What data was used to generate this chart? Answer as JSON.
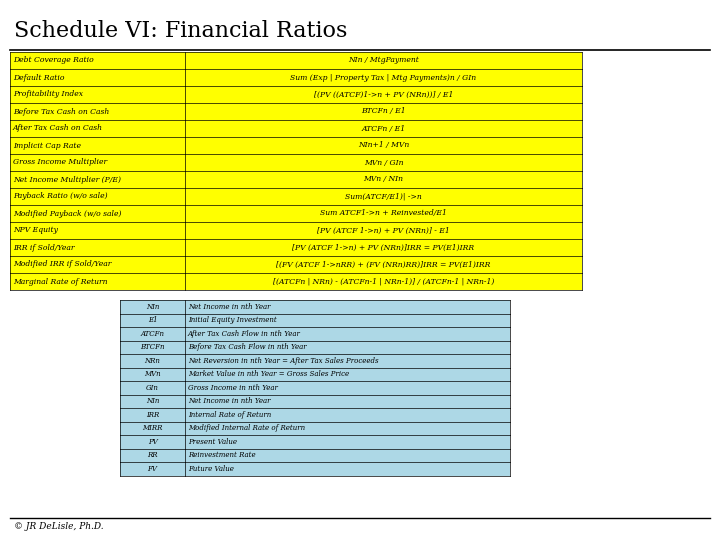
{
  "title": "Schedule VI: Financial Ratios",
  "title_fontsize": 16,
  "bg_color": "#ffffff",
  "main_table": {
    "bg": "#ffff00",
    "border_color": "#000000",
    "rows": [
      [
        "Debt Coverage Ratio",
        "NIn / MtgPayment"
      ],
      [
        "Default Ratio",
        "Sum (Exp | Property Tax | Mtg Payments)n / GIn"
      ],
      [
        "Profitability Index",
        "[(PV ((ATCF)1->n + PV (NRn))] / E1"
      ],
      [
        "Before Tax Cash on Cash",
        "BTCFn / E1"
      ],
      [
        "After Tax Cash on Cash",
        "ATCFn / E1"
      ],
      [
        "Implicit Cap Rate",
        "NIn+1 / MVn"
      ],
      [
        "Gross Income Multiplier",
        "MVn / GIn"
      ],
      [
        "Net Income Multiplier (P/E)",
        "MVn / NIn"
      ],
      [
        "Payback Ratio (w/o sale)",
        "Sum(ATCF/E1)| ->n"
      ],
      [
        "Modified Payback (w/o sale)",
        "Sum ATCF1->n + Reinvested/E1"
      ],
      [
        "NPV Equity",
        "[PV (ATCF 1->n) + PV (NRn)] - E1"
      ],
      [
        "IRR if Sold/Year",
        "[PV (ATCF 1->n) + PV (NRn)]IRR = PV(E1)IRR"
      ],
      [
        "Modified IRR if Sold/Year",
        "[(FV (ATCF 1->nRR) + (FV (NRn)RR)]IRR = PV(E1)IRR"
      ],
      [
        "Marginal Rate of Return",
        "[(ATCFn | NRn) - (ATCFn-1 | NRn-1)] / (ATCFn-1 | NRn-1)"
      ]
    ]
  },
  "legend_table": {
    "bg_color": "#add8e6",
    "border_color": "#000000",
    "rows": [
      [
        "NIn",
        "Net Income in nth Year"
      ],
      [
        "E1",
        "Initial Equity Investment"
      ],
      [
        "ATCFn",
        "After Tax Cash Flow in nth Year"
      ],
      [
        "BTCFn",
        "Before Tax Cash Flow in nth Year"
      ],
      [
        "NRn",
        "Net Reversion in nth Year = After Tax Sales Proceeds"
      ],
      [
        "MVn",
        "Market Value in nth Year = Gross Sales Price"
      ],
      [
        "GIn",
        "Gross Income in nth Year"
      ],
      [
        "NIn",
        "Net Income in nth Year"
      ],
      [
        "IRR",
        "Internal Rate of Return"
      ],
      [
        "MIRR",
        "Modified Internal Rate of Return"
      ],
      [
        "PV",
        "Present Value"
      ],
      [
        "RR",
        "Reinvestment Rate"
      ],
      [
        "FV",
        "Future Value"
      ]
    ]
  },
  "footer": "© JR DeLisle, Ph.D."
}
